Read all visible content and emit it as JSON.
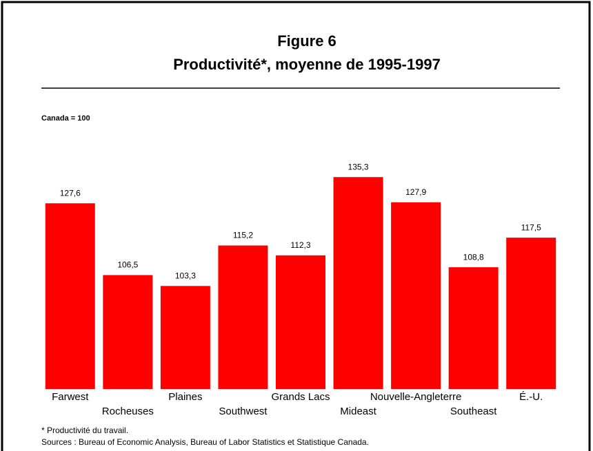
{
  "chart_data": {
    "type": "bar",
    "title": "Figure 6",
    "subtitle": "Productivité*, moyenne de 1995-1997",
    "y_label": "Canada = 100",
    "categories": [
      "Farwest",
      "Rocheuses",
      "Plaines",
      "Southwest",
      "Grands Lacs",
      "Mideast",
      "Nouvelle-Angleterre",
      "Southeast",
      "É.-U."
    ],
    "values": [
      127.6,
      106.5,
      103.3,
      115.2,
      112.3,
      135.3,
      127.9,
      108.8,
      117.5
    ],
    "value_labels": [
      "127,6",
      "106,5",
      "103,3",
      "115,2",
      "112,3",
      "135,3",
      "127,9",
      "108,8",
      "117,5"
    ],
    "color": "#ff0000",
    "ylim": [
      73,
      140
    ],
    "notes": [
      "* Productivité du travail.",
      "Sources : Bureau of Economic Analysis, Bureau of Labor Statistics et Statistique Canada."
    ]
  }
}
